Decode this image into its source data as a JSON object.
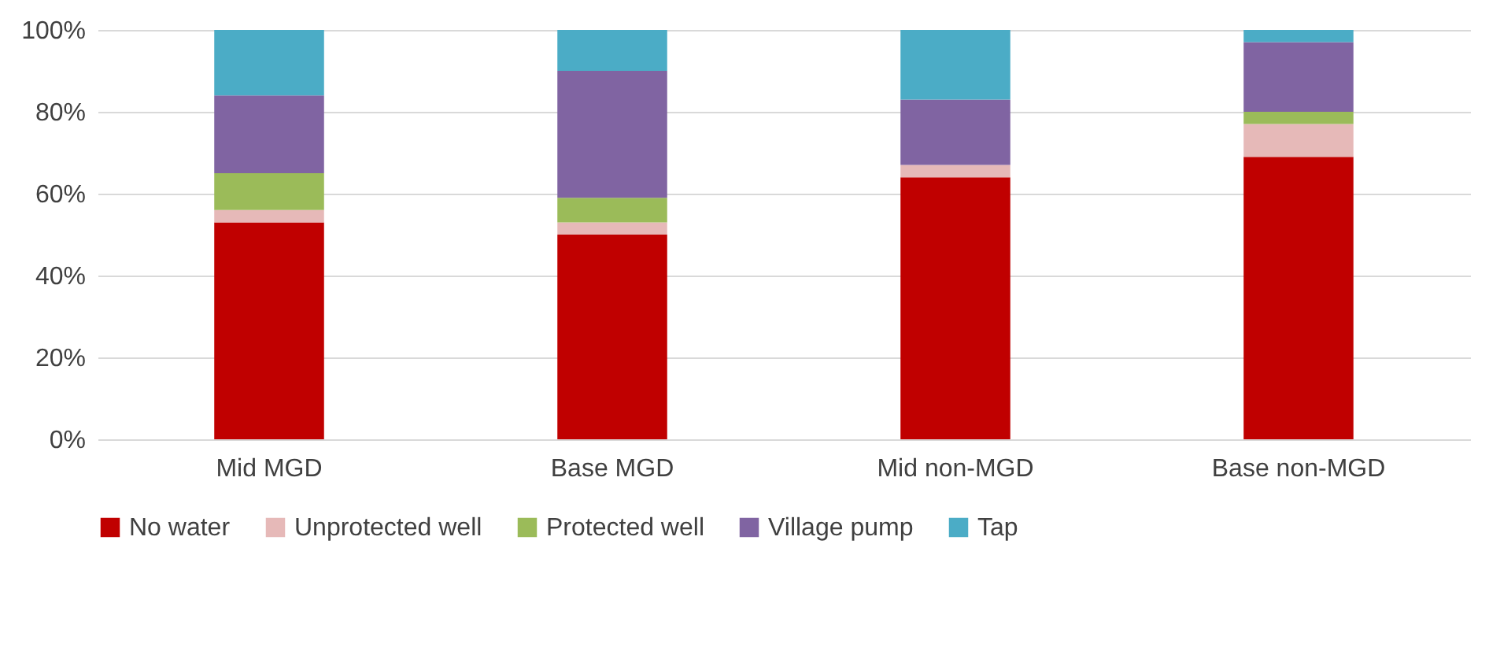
{
  "chart_data": {
    "type": "bar",
    "stacked": true,
    "categories": [
      "Mid MGD",
      "Base MGD",
      "Mid non-MGD",
      "Base non-MGD"
    ],
    "series": [
      {
        "name": "No water",
        "color": "#c00000",
        "values": [
          53,
          50,
          64,
          69
        ]
      },
      {
        "name": "Unprotected well",
        "color": "#e6b9b8",
        "values": [
          3,
          3,
          3,
          8
        ]
      },
      {
        "name": "Protected well",
        "color": "#9bbb59",
        "values": [
          9,
          6,
          0,
          3
        ]
      },
      {
        "name": "Village pump",
        "color": "#8064a2",
        "values": [
          19,
          31,
          16,
          17
        ]
      },
      {
        "name": "Tap",
        "color": "#4bacc6",
        "values": [
          16,
          10,
          17,
          3
        ]
      }
    ],
    "ylim": [
      0,
      100
    ],
    "yticks": [
      {
        "value": 0,
        "label": "0%"
      },
      {
        "value": 20,
        "label": "20%"
      },
      {
        "value": 40,
        "label": "40%"
      },
      {
        "value": 60,
        "label": "60%"
      },
      {
        "value": 80,
        "label": "80%"
      },
      {
        "value": 100,
        "label": "100%"
      }
    ],
    "grid": "y",
    "legend": "bottom"
  }
}
